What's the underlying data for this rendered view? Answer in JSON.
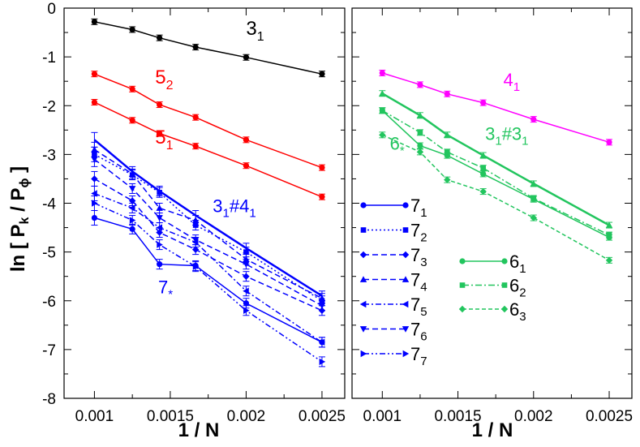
{
  "figure": {
    "ylabel_main": "ln [ P",
    "ylabel_k": "k",
    "ylabel_slash": " / P",
    "ylabel_phi": "ϕ",
    "ylabel_close": " ]",
    "xlabel": "1 / N"
  },
  "chart_data": [
    {
      "panel": "left",
      "type": "line",
      "xlabel": "1 / N",
      "ylabel": "ln [ Pk / Pϕ ]",
      "xlim": [
        0.0008,
        0.00265
      ],
      "ylim": [
        -8,
        0
      ],
      "xticks": [
        "0.001",
        "0.0015",
        "0.002",
        "0.0025"
      ],
      "yticks": [
        "0",
        "-1",
        "-2",
        "-3",
        "-4",
        "-5",
        "-6",
        "-7",
        "-8"
      ],
      "x": [
        0.001,
        0.00125,
        0.001429,
        0.001667,
        0.002,
        0.0025
      ],
      "series": [
        {
          "name": "3_1",
          "label": "3",
          "sub": "1",
          "color": "#000000",
          "dash": "",
          "marker": "circle",
          "width": 1.5,
          "values": [
            -0.28,
            -0.44,
            -0.61,
            -0.8,
            -1.01,
            -1.35
          ]
        },
        {
          "name": "5_2",
          "label": "5",
          "sub": "2",
          "color": "#ff0000",
          "dash": "",
          "marker": "circle",
          "width": 1.5,
          "values": [
            -1.35,
            -1.66,
            -1.98,
            -2.24,
            -2.7,
            -3.27
          ]
        },
        {
          "name": "5_1",
          "label": "5",
          "sub": "1",
          "color": "#ff0000",
          "dash": "",
          "marker": "circle",
          "width": 1.5,
          "values": [
            -1.93,
            -2.3,
            -2.57,
            -2.83,
            -3.23,
            -3.87
          ]
        },
        {
          "name": "3_1#4_1",
          "label": "3",
          "sub": "1",
          "suffix": "#4",
          "sub2": "1",
          "color": "#0000ff",
          "dash": "",
          "marker": "none",
          "width": 2.5,
          "values": [
            -2.7,
            -3.35,
            -3.75,
            -4.25,
            -4.92,
            -5.9
          ]
        },
        {
          "name": "7_1",
          "label": "7",
          "sub": "1",
          "color": "#0000ff",
          "dash": "",
          "marker": "circle",
          "width": 1.5,
          "values": [
            -4.3,
            -4.53,
            -5.25,
            -5.28,
            -6.05,
            -6.85
          ]
        },
        {
          "name": "7_2",
          "label": "7",
          "sub": "2",
          "color": "#0000ff",
          "dash": "2,3",
          "marker": "square",
          "width": 1.5,
          "values": [
            -3.0,
            -3.42,
            -3.78,
            -4.45,
            -5.0,
            -6.0
          ]
        },
        {
          "name": "7_3",
          "label": "7",
          "sub": "3",
          "color": "#0000ff",
          "dash": "7,4",
          "marker": "diamond",
          "width": 1.5,
          "values": [
            -3.5,
            -3.95,
            -4.6,
            -4.95,
            -5.5,
            -6.2
          ]
        },
        {
          "name": "7_4",
          "label": "7",
          "sub": "4",
          "color": "#0000ff",
          "dash": "7,4",
          "marker": "triangle-up",
          "width": 1.5,
          "values": [
            -2.9,
            -3.4,
            -4.1,
            -4.35,
            -5.15,
            -5.95
          ]
        },
        {
          "name": "7_5",
          "label": "7",
          "sub": "5",
          "color": "#0000ff",
          "dash": "7,3,2,3",
          "marker": "triangle-left",
          "width": 1.5,
          "values": [
            -3.8,
            -4.1,
            -4.5,
            -4.8,
            -5.8,
            -6.85
          ]
        },
        {
          "name": "7_6",
          "label": "7",
          "sub": "6",
          "color": "#0000ff",
          "dash": "7,4",
          "marker": "triangle-down",
          "width": 1.5,
          "values": [
            -3.1,
            -3.7,
            -4.3,
            -4.75,
            -5.25,
            -6.1
          ]
        },
        {
          "name": "7_7",
          "label": "7",
          "sub": "7",
          "color": "#0000ff",
          "dash": "7,3,2,3,2,3",
          "marker": "triangle-right",
          "width": 1.5,
          "values": [
            -4.0,
            -4.35,
            -4.85,
            -5.3,
            -6.2,
            -7.25
          ]
        }
      ],
      "annotations": [
        {
          "text": "3",
          "sub": "1",
          "series": "3_1"
        },
        {
          "text": "5",
          "sub": "2",
          "series": "5_2"
        },
        {
          "text": "5",
          "sub": "1",
          "series": "5_1"
        },
        {
          "text": "3",
          "sub": "1",
          "suffix": "#4",
          "sub2": "1",
          "series": "3_1#4_1"
        },
        {
          "text": "7",
          "sub": "*",
          "series": "7_*"
        }
      ],
      "legend": [
        {
          "label": "7",
          "sub": "1"
        },
        {
          "label": "7",
          "sub": "2"
        },
        {
          "label": "7",
          "sub": "3"
        },
        {
          "label": "7",
          "sub": "4"
        },
        {
          "label": "7",
          "sub": "5"
        },
        {
          "label": "7",
          "sub": "6"
        },
        {
          "label": "7",
          "sub": "7"
        }
      ],
      "legend_position": "bottom-right"
    },
    {
      "panel": "right",
      "type": "line",
      "xlabel": "1 / N",
      "xlim": [
        0.0008,
        0.00265
      ],
      "ylim": [
        -8,
        0
      ],
      "xticks": [
        "0.001",
        "0.0015",
        "0.002",
        "0.0025"
      ],
      "x": [
        0.001,
        0.00125,
        0.001429,
        0.001667,
        0.002,
        0.0025
      ],
      "series": [
        {
          "name": "4_1",
          "label": "4",
          "sub": "1",
          "color": "#ff00ff",
          "dash": "",
          "marker": "circle",
          "width": 1.5,
          "values": [
            -1.33,
            -1.57,
            -1.76,
            -1.94,
            -2.28,
            -2.75
          ]
        },
        {
          "name": "3_1#3_1",
          "label": "3",
          "sub": "1",
          "suffix": "#3",
          "sub2": "1",
          "color": "#22c55e",
          "dash": "",
          "marker": "triangle-up",
          "width": 2.5,
          "values": [
            -1.75,
            -2.2,
            -2.6,
            -3.02,
            -3.6,
            -4.45
          ]
        },
        {
          "name": "6_1",
          "label": "6",
          "sub": "1",
          "color": "#22c55e",
          "dash": "",
          "marker": "circle",
          "width": 1.5,
          "values": [
            -2.1,
            -2.82,
            -3.02,
            -3.4,
            -3.92,
            -4.7
          ]
        },
        {
          "name": "6_2",
          "label": "6",
          "sub": "2",
          "color": "#22c55e",
          "dash": "8,3,2,3",
          "marker": "square",
          "width": 1.5,
          "values": [
            -2.1,
            -2.55,
            -2.95,
            -3.28,
            -3.9,
            -4.65
          ]
        },
        {
          "name": "6_3",
          "label": "6",
          "sub": "3",
          "color": "#22c55e",
          "dash": "5,3",
          "marker": "diamond",
          "width": 1.5,
          "values": [
            -2.6,
            -2.95,
            -3.52,
            -3.76,
            -4.3,
            -5.17
          ]
        }
      ],
      "annotations": [
        {
          "text": "4",
          "sub": "1",
          "series": "4_1"
        },
        {
          "text": "6",
          "sub": "*",
          "series": "6_*"
        },
        {
          "text": "3",
          "sub": "1",
          "suffix": "#3",
          "sub2": "1",
          "series": "3_1#3_1"
        }
      ],
      "legend": [
        {
          "label": "6",
          "sub": "1"
        },
        {
          "label": "6",
          "sub": "2"
        },
        {
          "label": "6",
          "sub": "3"
        }
      ],
      "legend_position": "lower-left"
    }
  ]
}
